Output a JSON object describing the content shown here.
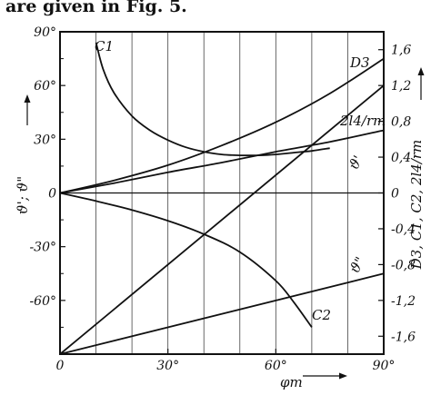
{
  "header": {
    "text": "are given in Fig. 5."
  },
  "chart_data": {
    "type": "line",
    "xlabel": "φm",
    "ylabel_left": "ϑ'; ϑ\"",
    "ylabel_right": "D3, C1, C2, 2l4/rm",
    "x_ticks": [
      "0",
      "30°",
      "60°",
      "90°"
    ],
    "y_left_ticks": [
      "90°",
      "60°",
      "30°",
      "0",
      "-30°",
      "-60°"
    ],
    "y_right_ticks": [
      "1,6",
      "1,2",
      "0,8",
      "0,4",
      "0",
      "-0,4",
      "-0,8",
      "-1,2",
      "-1,6"
    ],
    "xlim": [
      0,
      90
    ],
    "ylim_left": [
      -90,
      90
    ],
    "ylim_right": [
      -1.8,
      1.8
    ],
    "grid": "vertical",
    "series": [
      {
        "name": "C1",
        "axis": "right",
        "x": [
          10,
          12,
          15,
          20,
          25,
          30,
          35,
          40,
          45,
          50,
          55,
          60,
          65,
          70,
          75
        ],
        "values": [
          1.68,
          1.38,
          1.12,
          0.86,
          0.7,
          0.59,
          0.51,
          0.46,
          0.43,
          0.42,
          0.42,
          0.43,
          0.45,
          0.47,
          0.5
        ]
      },
      {
        "name": "D3",
        "axis": "right",
        "x": [
          0,
          15,
          30,
          45,
          60,
          75,
          90
        ],
        "values": [
          0,
          0.14,
          0.31,
          0.53,
          0.79,
          1.11,
          1.5
        ]
      },
      {
        "name": "2l4/rm",
        "axis": "right",
        "x": [
          0,
          15,
          30,
          45,
          60,
          75,
          90
        ],
        "values": [
          0,
          0.11,
          0.23,
          0.34,
          0.46,
          0.57,
          0.7
        ]
      },
      {
        "name": "C2",
        "axis": "right",
        "x": [
          0,
          10,
          20,
          30,
          40,
          50,
          60,
          65,
          70
        ],
        "values": [
          0,
          -0.09,
          -0.19,
          -0.31,
          -0.46,
          -0.66,
          -0.98,
          -1.22,
          -1.5
        ]
      },
      {
        "name": "ϑ'",
        "axis": "left",
        "x": [
          0,
          90
        ],
        "values": [
          -90,
          60
        ]
      },
      {
        "name": "ϑ\"",
        "axis": "left",
        "x": [
          0,
          90
        ],
        "values": [
          -90,
          -45
        ]
      }
    ]
  }
}
